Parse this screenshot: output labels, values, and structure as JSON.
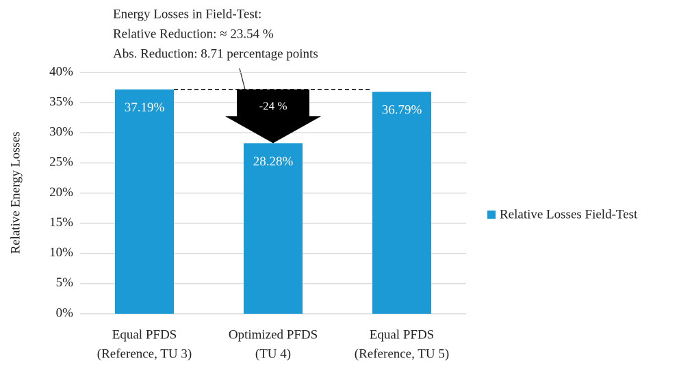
{
  "chart_data": {
    "type": "bar",
    "annotations": [
      "Energy Losses in Field-Test:",
      "Relative Reduction: ≈ 23.54 %",
      "Abs. Reduction: 8.71 percentage points"
    ],
    "arrow_label": "-24 %",
    "y_label": "Relative Energy Losses",
    "categories": [
      [
        "Equal PFDS",
        "(Reference, TU 3)"
      ],
      [
        "Optimized PFDS",
        "(TU 4)"
      ],
      [
        "Equal PFDS",
        "(Reference, TU 5)"
      ]
    ],
    "series": [
      {
        "name": "Relative Losses Field-Test",
        "color": "#1b9ad6",
        "values": [
          37.19,
          28.28,
          36.79
        ],
        "value_labels": [
          "37.19%",
          "28.28%",
          "36.79%"
        ]
      }
    ],
    "ylim": [
      0,
      40
    ],
    "yticks": [
      {
        "value": 0,
        "label": "0%"
      },
      {
        "value": 5,
        "label": "5%"
      },
      {
        "value": 10,
        "label": "10%"
      },
      {
        "value": 15,
        "label": "15%"
      },
      {
        "value": 20,
        "label": "20%"
      },
      {
        "value": 25,
        "label": "25%"
      },
      {
        "value": 30,
        "label": "30%"
      },
      {
        "value": 35,
        "label": "35%"
      },
      {
        "value": 40,
        "label": "40%"
      }
    ],
    "grid": true,
    "legend": "right"
  }
}
